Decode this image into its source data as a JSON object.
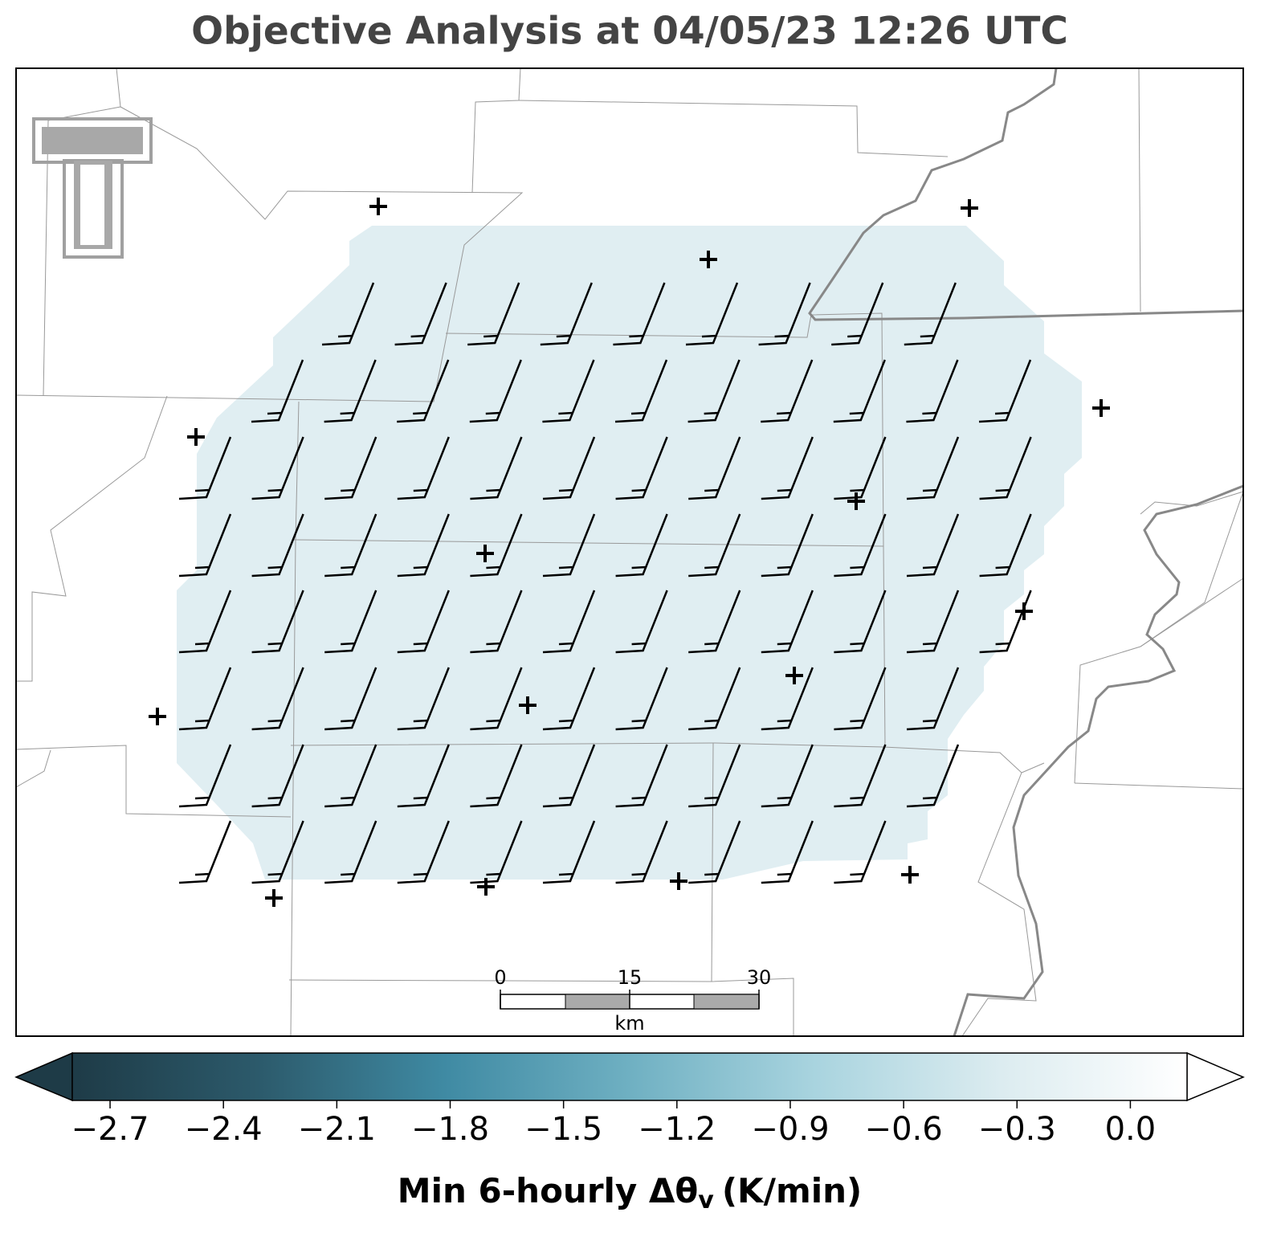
{
  "title": "Objective Analysis at 04/05/23 12:26 UTC",
  "scale_bar": {
    "ticks": [
      "0",
      "15",
      "30"
    ],
    "unit": "km"
  },
  "colorbar": {
    "clim": [
      -2.8,
      0.15
    ],
    "colors": [
      "#1e3b47",
      "#2c5a6b",
      "#3f8aa3",
      "#6fb0c2",
      "#a9d4df",
      "#dcecf0",
      "#ffffff"
    ],
    "ticks": [
      {
        "value": -2.7,
        "label": "−2.7"
      },
      {
        "value": -2.4,
        "label": "−2.4"
      },
      {
        "value": -2.1,
        "label": "−2.1"
      },
      {
        "value": -1.8,
        "label": "−1.8"
      },
      {
        "value": -1.5,
        "label": "−1.5"
      },
      {
        "value": -1.2,
        "label": "−1.2"
      },
      {
        "value": -0.9,
        "label": "−0.9"
      },
      {
        "value": -0.6,
        "label": "−0.6"
      },
      {
        "value": -0.3,
        "label": "−0.3"
      },
      {
        "value": 0,
        "label": "0.0"
      }
    ],
    "label": {
      "main": "Min 6-hourly Δθ",
      "sub": "v",
      "unit": "(K/min)"
    }
  }
}
